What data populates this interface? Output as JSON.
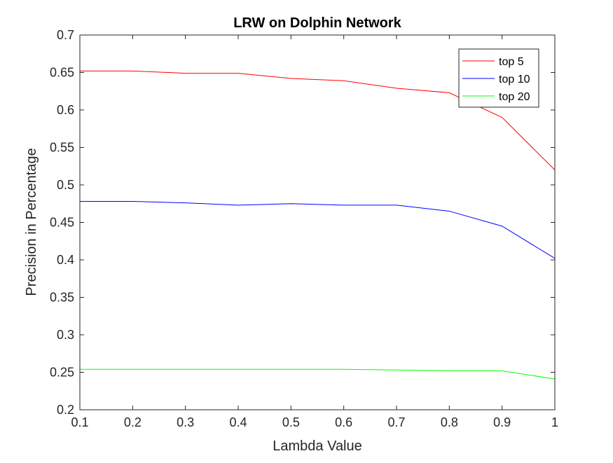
{
  "chart_data": {
    "type": "line",
    "title": "LRW on Dolphin Network",
    "xlabel": "Lambda Value",
    "ylabel": "Precision in Percentage",
    "xlim": [
      0.1,
      1
    ],
    "ylim": [
      0.2,
      0.7
    ],
    "x": [
      0.1,
      0.2,
      0.3,
      0.4,
      0.5,
      0.6,
      0.7,
      0.8,
      0.9,
      1.0
    ],
    "xticks": [
      "0.1",
      "0.2",
      "0.3",
      "0.4",
      "0.5",
      "0.6",
      "0.7",
      "0.8",
      "0.9",
      "1"
    ],
    "yticks": [
      "0.2",
      "0.25",
      "0.3",
      "0.35",
      "0.4",
      "0.45",
      "0.5",
      "0.55",
      "0.6",
      "0.65",
      "0.7"
    ],
    "grid": false,
    "legend_position": "top-right",
    "series": [
      {
        "name": "top 5",
        "color": "#ff0000",
        "values": [
          0.652,
          0.652,
          0.649,
          0.649,
          0.642,
          0.639,
          0.629,
          0.623,
          0.59,
          0.52
        ]
      },
      {
        "name": "top 10",
        "color": "#0000ff",
        "values": [
          0.478,
          0.478,
          0.476,
          0.473,
          0.475,
          0.473,
          0.473,
          0.465,
          0.445,
          0.402
        ]
      },
      {
        "name": "top 20",
        "color": "#00ff00",
        "values": [
          0.254,
          0.254,
          0.254,
          0.254,
          0.254,
          0.254,
          0.253,
          0.252,
          0.252,
          0.241
        ]
      }
    ]
  }
}
